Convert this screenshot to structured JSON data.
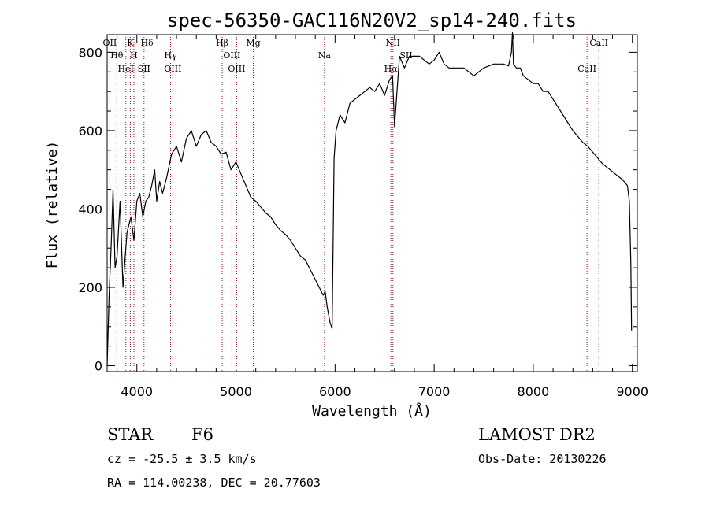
{
  "chart_data": {
    "type": "line",
    "title": "spec-56350-GAC116N20V2_sp14-240.fits",
    "xlabel": "Wavelength (Å)",
    "ylabel": "Flux (relative)",
    "xlim": [
      3700,
      9050
    ],
    "ylim": [
      -15,
      845
    ],
    "xticks": [
      4000,
      5000,
      6000,
      7000,
      8000,
      9000
    ],
    "yticks": [
      0,
      200,
      400,
      600,
      800
    ],
    "x_minor_step": 200,
    "y_minor_step": 50,
    "colors": {
      "spectrum": "#000000",
      "lines": "#8b1a1a"
    },
    "series": [
      {
        "name": "spectrum",
        "x": [
          3700,
          3720,
          3740,
          3760,
          3780,
          3800,
          3830,
          3860,
          3900,
          3940,
          3970,
          4000,
          4030,
          4060,
          4090,
          4120,
          4150,
          4180,
          4200,
          4230,
          4260,
          4300,
          4350,
          4400,
          4450,
          4500,
          4550,
          4600,
          4650,
          4700,
          4750,
          4800,
          4850,
          4900,
          4950,
          5000,
          5050,
          5100,
          5150,
          5200,
          5250,
          5300,
          5350,
          5400,
          5450,
          5500,
          5550,
          5600,
          5650,
          5700,
          5750,
          5800,
          5850,
          5880,
          5900,
          5920,
          5950,
          5970,
          5990,
          6010,
          6050,
          6100,
          6150,
          6200,
          6250,
          6300,
          6350,
          6400,
          6450,
          6500,
          6550,
          6580,
          6600,
          6650,
          6700,
          6750,
          6800,
          6850,
          6900,
          6950,
          7000,
          7050,
          7100,
          7150,
          7200,
          7300,
          7400,
          7500,
          7600,
          7700,
          7750,
          7780,
          7790,
          7800,
          7830,
          7870,
          7900,
          7950,
          8000,
          8050,
          8100,
          8150,
          8200,
          8250,
          8300,
          8350,
          8400,
          8450,
          8500,
          8550,
          8600,
          8650,
          8700,
          8750,
          8800,
          8850,
          8900,
          8950,
          8970,
          8985,
          8992
        ],
        "y": [
          0,
          180,
          300,
          450,
          250,
          280,
          420,
          200,
          340,
          380,
          320,
          420,
          440,
          380,
          420,
          430,
          460,
          500,
          420,
          470,
          440,
          480,
          540,
          560,
          520,
          580,
          600,
          560,
          590,
          600,
          570,
          560,
          540,
          545,
          500,
          520,
          490,
          460,
          430,
          420,
          405,
          390,
          380,
          360,
          345,
          335,
          320,
          300,
          280,
          270,
          245,
          220,
          195,
          180,
          190,
          150,
          110,
          95,
          530,
          600,
          640,
          620,
          670,
          680,
          690,
          700,
          710,
          700,
          720,
          690,
          730,
          740,
          610,
          790,
          760,
          790,
          790,
          790,
          780,
          770,
          780,
          800,
          770,
          760,
          760,
          760,
          740,
          760,
          770,
          770,
          765,
          800,
          850,
          770,
          760,
          760,
          740,
          730,
          720,
          720,
          700,
          700,
          680,
          660,
          640,
          620,
          600,
          585,
          570,
          560,
          545,
          530,
          515,
          505,
          495,
          485,
          475,
          460,
          420,
          260,
          90
        ]
      }
    ],
    "line_markers": [
      {
        "wavelength": 3727,
        "top": "OII",
        "bottom": ""
      },
      {
        "wavelength": 3798,
        "top": "Hθ",
        "bottom": ""
      },
      {
        "wavelength": 3889,
        "top": "HeI",
        "bottom": ""
      },
      {
        "wavelength": 3934,
        "top": "K",
        "bottom": ""
      },
      {
        "wavelength": 3970,
        "top": "H",
        "bottom": ""
      },
      {
        "wavelength": 4072,
        "top": "SII",
        "bottom": ""
      },
      {
        "wavelength": 4102,
        "top": "Hδ",
        "bottom": ""
      },
      {
        "wavelength": 4340,
        "top": "Hγ",
        "bottom": ""
      },
      {
        "wavelength": 4363,
        "top": "OIII",
        "bottom": ""
      },
      {
        "wavelength": 4861,
        "top": "Hβ",
        "bottom": ""
      },
      {
        "wavelength": 4959,
        "top": "OIII",
        "bottom": ""
      },
      {
        "wavelength": 5007,
        "top": "OIII",
        "bottom": ""
      },
      {
        "wavelength": 5175,
        "top": "Mg",
        "bottom": ""
      },
      {
        "wavelength": 5893,
        "top": "Na",
        "bottom": ""
      },
      {
        "wavelength": 6563,
        "top": "Hα",
        "bottom": ""
      },
      {
        "wavelength": 6584,
        "top": "NII",
        "bottom": ""
      },
      {
        "wavelength": 6717,
        "top": "SII",
        "bottom": ""
      },
      {
        "wavelength": 8542,
        "top": "CaII",
        "bottom": ""
      },
      {
        "wavelength": 8662,
        "top": "CaII",
        "bottom": ""
      }
    ]
  },
  "info": {
    "object_class": "STAR",
    "subclass": "F6",
    "survey": "LAMOST DR2",
    "redshift": "cz = -25.5 ± 3.5 km/s",
    "obs_date": "Obs-Date: 20130226",
    "coords": "RA = 114.00238, DEC =  20.77603"
  }
}
